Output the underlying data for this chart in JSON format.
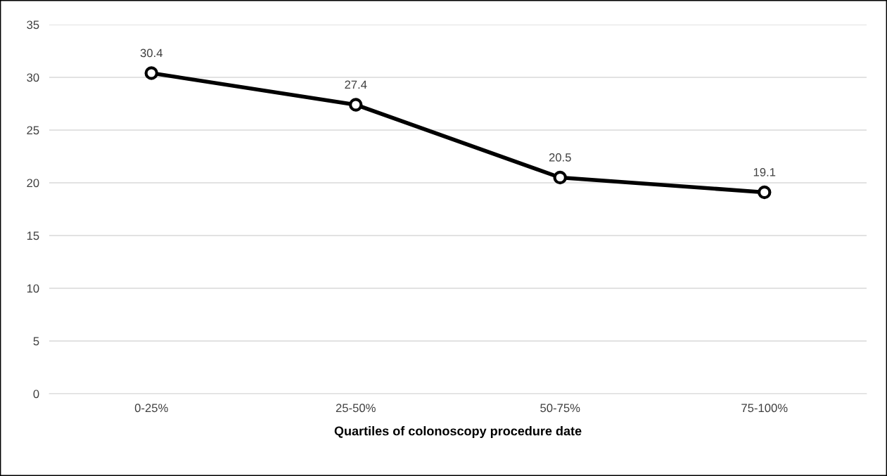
{
  "chart_data": {
    "type": "line",
    "xlabel": "Quartiles of colonoscopy procedure date",
    "categories": [
      "0-25%",
      "25-50%",
      "50-75%",
      "75-100%"
    ],
    "series": [
      {
        "color": "#000000",
        "values": [
          30.4,
          27.4,
          20.5,
          19.1
        ]
      }
    ],
    "ylim": [
      0,
      35
    ],
    "yticks": [
      0,
      5,
      10,
      15,
      20,
      25,
      30,
      35
    ],
    "grid": "y",
    "marker": "circle",
    "line_style": "solid",
    "data_labels": true
  }
}
